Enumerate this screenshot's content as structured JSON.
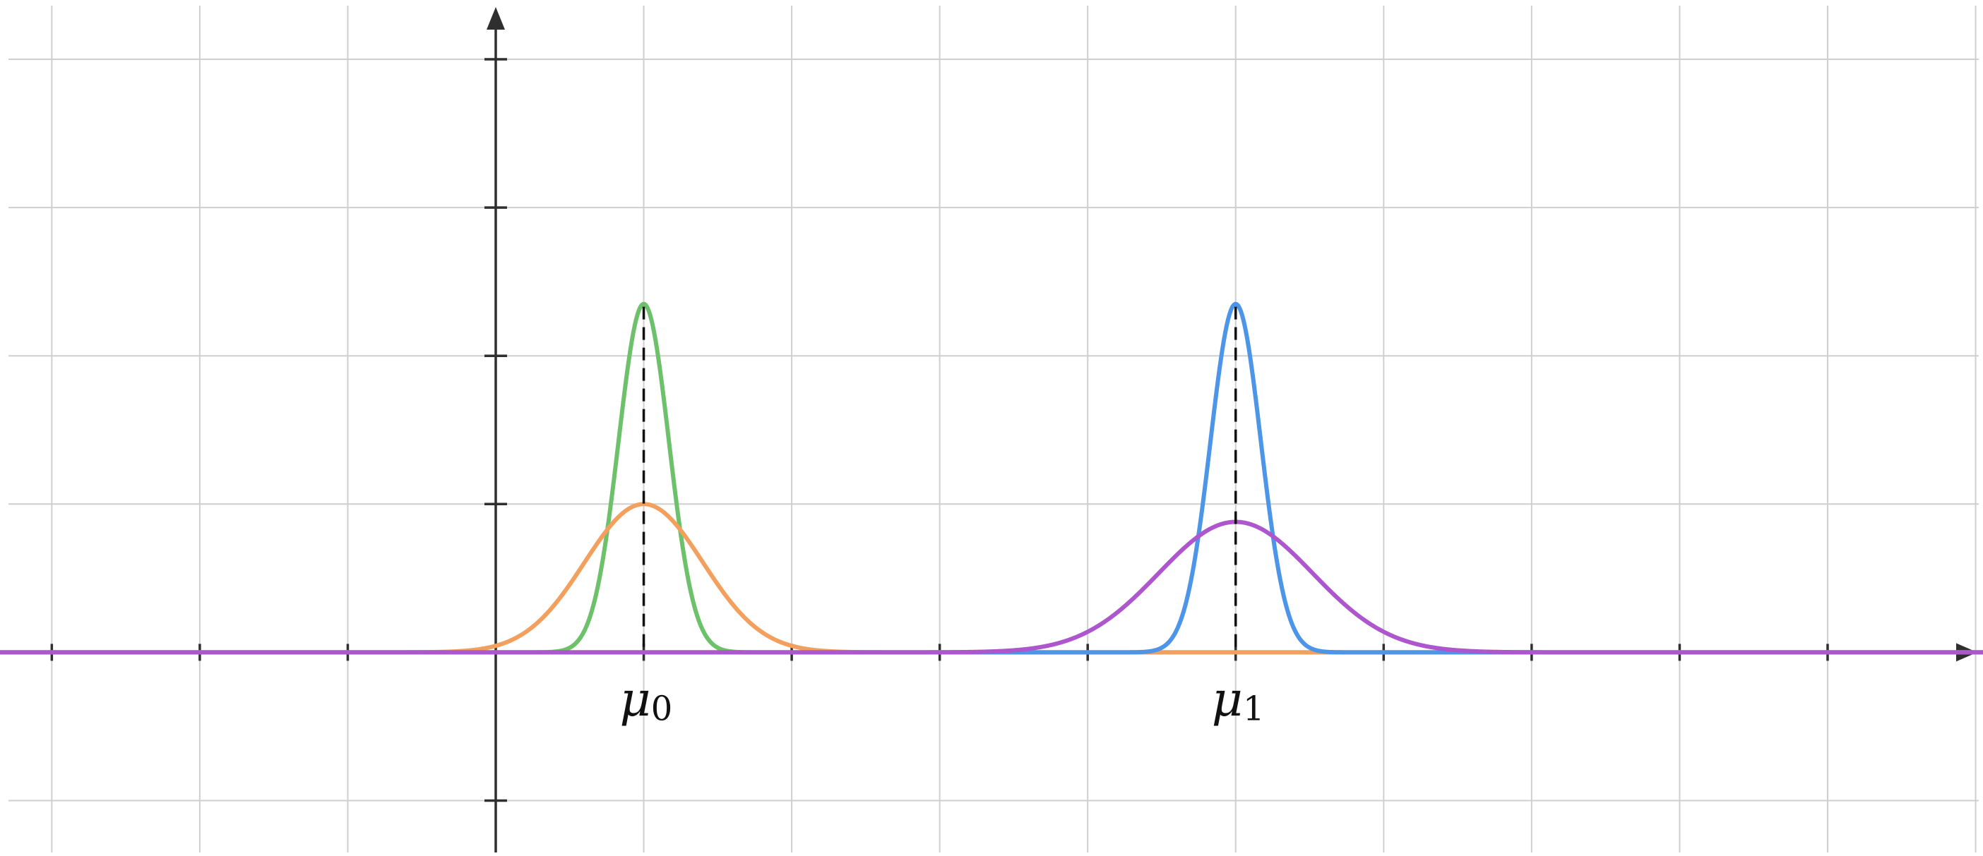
{
  "chart_data": {
    "type": "line",
    "title": "",
    "xlabel": "",
    "ylabel": "",
    "xlim": [
      -3.35,
      10.05
    ],
    "ylim": [
      -1.35,
      4.4
    ],
    "grid": true,
    "x_ticks": [
      -3,
      -2,
      -1,
      1,
      2,
      3,
      4,
      5,
      6,
      7,
      8,
      9
    ],
    "y_ticks": [
      -1,
      1,
      2,
      3,
      4
    ],
    "tick_labels_shown": false,
    "series": [
      {
        "color": "#6cc16a",
        "mean": 1,
        "std": 0.17,
        "peak": 2.35
      },
      {
        "color": "#f3a05e",
        "mean": 1,
        "std": 0.4,
        "peak": 1.0
      },
      {
        "color": "#4c95e8",
        "mean": 5,
        "std": 0.17,
        "peak": 2.35
      },
      {
        "color": "#ad56cd",
        "mean": 5,
        "std": 0.52,
        "peak": 0.88
      }
    ],
    "mean_markers": [
      {
        "x": 1,
        "symbol": "μ",
        "subscript": "0"
      },
      {
        "x": 5,
        "symbol": "μ",
        "subscript": "1"
      }
    ]
  }
}
